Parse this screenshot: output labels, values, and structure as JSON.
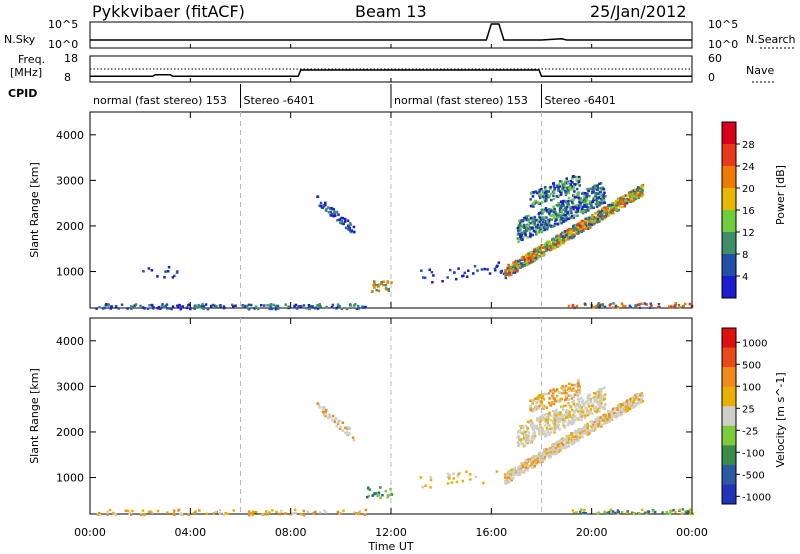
{
  "header": {
    "title": "Pykkvibaer (fitACF)",
    "beam": "Beam 13",
    "date": "25/Jan/2012"
  },
  "chart_data": [
    {
      "type": "line",
      "panel": "noise",
      "left_label": "N.Sky",
      "right_label": "N.Search",
      "left_ticks": [
        "10^5",
        "10^0"
      ],
      "right_ticks": [
        "10^5",
        "10^0"
      ],
      "x": [
        0,
        1,
        2,
        3,
        4,
        5,
        6,
        7,
        8,
        9,
        10,
        11,
        12,
        13,
        14,
        15,
        15.8,
        16.0,
        16.3,
        16.5,
        17,
        18,
        18.8,
        19,
        20,
        21,
        22,
        23,
        24
      ],
      "values": [
        1,
        1,
        1,
        1,
        1,
        1,
        1,
        1,
        1,
        1,
        1,
        1,
        1,
        1,
        1,
        1,
        1,
        5,
        5,
        1,
        1,
        1,
        1.3,
        1,
        1,
        1,
        1,
        1,
        1
      ]
    },
    {
      "type": "line",
      "panel": "frequency",
      "left_label": "Freq.",
      "left_unit": "[MHz]",
      "right_label": "Nave",
      "left_ticks": [
        "18",
        "8"
      ],
      "right_ticks": [
        "60",
        "0"
      ],
      "series": [
        {
          "name": "Freq",
          "x": [
            0,
            2.5,
            2.6,
            3.2,
            3.3,
            8.3,
            8.4,
            17.9,
            18.0,
            24
          ],
          "values": [
            10.2,
            10.2,
            10.8,
            10.8,
            10.2,
            10.2,
            12.6,
            12.6,
            10.2,
            10.2
          ]
        },
        {
          "name": "Nave",
          "x": [
            0,
            24
          ],
          "values": [
            30,
            30
          ]
        }
      ]
    },
    {
      "type": "table",
      "panel": "cpid",
      "label": "CPID",
      "segments": [
        {
          "start": 0,
          "end": 6.0,
          "text": "normal (fast stereo) 153"
        },
        {
          "start": 6.0,
          "end": 12.0,
          "text": "Stereo -6401"
        },
        {
          "start": 12.0,
          "end": 18.0,
          "text": "normal (fast stereo) 153"
        },
        {
          "start": 18.0,
          "end": 24.0,
          "text": "Stereo -6401"
        }
      ]
    },
    {
      "type": "heatmap",
      "panel": "power",
      "ylabel": "Slant Range [km]",
      "y_ticks": [
        "1000",
        "2000",
        "3000",
        "4000"
      ],
      "ylim": [
        200,
        4500
      ],
      "colorbar_label": "Power [dB]",
      "colorbar_ticks": [
        "4",
        "8",
        "12",
        "16",
        "20",
        "24",
        "28"
      ],
      "colors": [
        "#1b1bd0",
        "#2150a8",
        "#3c8f6a",
        "#6fcc3a",
        "#e6b800",
        "#f07a00",
        "#e83a1a",
        "#d8001a"
      ]
    },
    {
      "type": "heatmap",
      "panel": "velocity",
      "ylabel": "Slant Range [km]",
      "y_ticks": [
        "1000",
        "2000",
        "3000",
        "4000"
      ],
      "ylim": [
        200,
        4500
      ],
      "colorbar_label": "Velocity [m s^-1]",
      "colorbar_ticks": [
        "1000",
        "500",
        "100",
        "25",
        "-25",
        "-100",
        "-500",
        "-1000"
      ],
      "colors": [
        "#2233bb",
        "#2a5aa6",
        "#3a8c4a",
        "#7ccc3a",
        "#cfcfc9",
        "#e8b000",
        "#f08a1a",
        "#e84a1a",
        "#e01010"
      ]
    }
  ],
  "xaxis": {
    "label": "Time UT",
    "ticks": [
      "00:00",
      "04:00",
      "08:00",
      "12:00",
      "16:00",
      "20:00",
      "00:00"
    ]
  }
}
